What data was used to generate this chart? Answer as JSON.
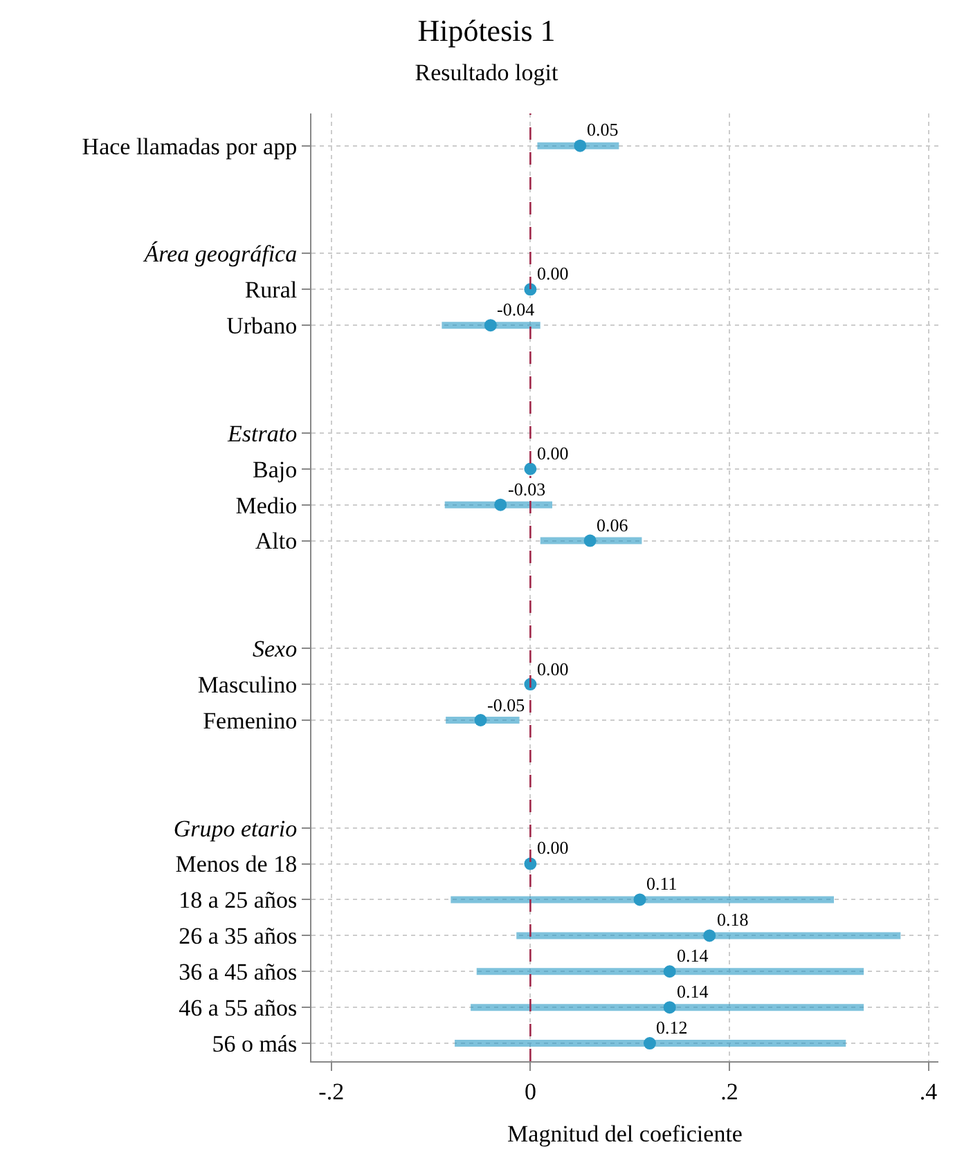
{
  "chart_data": {
    "type": "scatter",
    "orientation": "horizontal",
    "title": "Hipótesis 1",
    "subtitle": "Resultado logit",
    "xlabel": "Magnitud del coeficiente",
    "categories": [
      "Hace llamadas por app",
      null,
      null,
      "Área geográfica",
      "Rural",
      "Urbano",
      null,
      null,
      "Estrato",
      "Bajo",
      "Medio",
      "Alto",
      null,
      null,
      "Sexo",
      "Masculino",
      "Femenino",
      null,
      null,
      "Grupo etario",
      "Menos de 18",
      "18 a 25 años",
      "26 a 35 años",
      "36 a 45 años",
      "46 a 55 años",
      "56 o más"
    ],
    "values": [
      0.05,
      null,
      null,
      null,
      0,
      -0.04,
      null,
      null,
      null,
      0,
      -0.03,
      0.06,
      null,
      null,
      null,
      0,
      -0.05,
      null,
      null,
      null,
      0,
      0.11,
      0.18,
      0.14,
      0.14,
      0.12
    ],
    "errors": [
      [
        0.007,
        0.089
      ],
      null,
      null,
      null,
      null,
      [
        -0.089,
        0.01
      ],
      null,
      null,
      null,
      null,
      [
        -0.086,
        0.022
      ],
      [
        0.01,
        0.112
      ],
      null,
      null,
      null,
      null,
      [
        -0.085,
        -0.011
      ],
      null,
      null,
      null,
      null,
      [
        -0.08,
        0.305
      ],
      [
        -0.014,
        0.372
      ],
      [
        -0.054,
        0.335
      ],
      [
        -0.06,
        0.335
      ],
      [
        -0.076,
        0.317
      ]
    ],
    "value_labels": [
      "0.05",
      null,
      null,
      null,
      "0.00",
      "-0.04",
      null,
      null,
      null,
      "0.00",
      "-0.03",
      "0.06",
      null,
      null,
      null,
      "0.00",
      "-0.05",
      null,
      null,
      null,
      "0.00",
      "0.11",
      "0.18",
      "0.14",
      "0.14",
      "0.12"
    ],
    "color": "#2a9ac6",
    "xlim": [
      -0.22,
      0.41
    ],
    "xticks": [
      {
        "value": -0.2,
        "label": "-.2"
      },
      {
        "value": 0,
        "label": "0"
      },
      {
        "value": 0.2,
        "label": ".2"
      },
      {
        "value": 0.4,
        "label": ".4"
      }
    ],
    "ref_lines": [
      {
        "axis": "x",
        "value": 0,
        "color": "#a0284a",
        "line_style": "dashed"
      }
    ],
    "grid": true,
    "marker": "circle"
  }
}
